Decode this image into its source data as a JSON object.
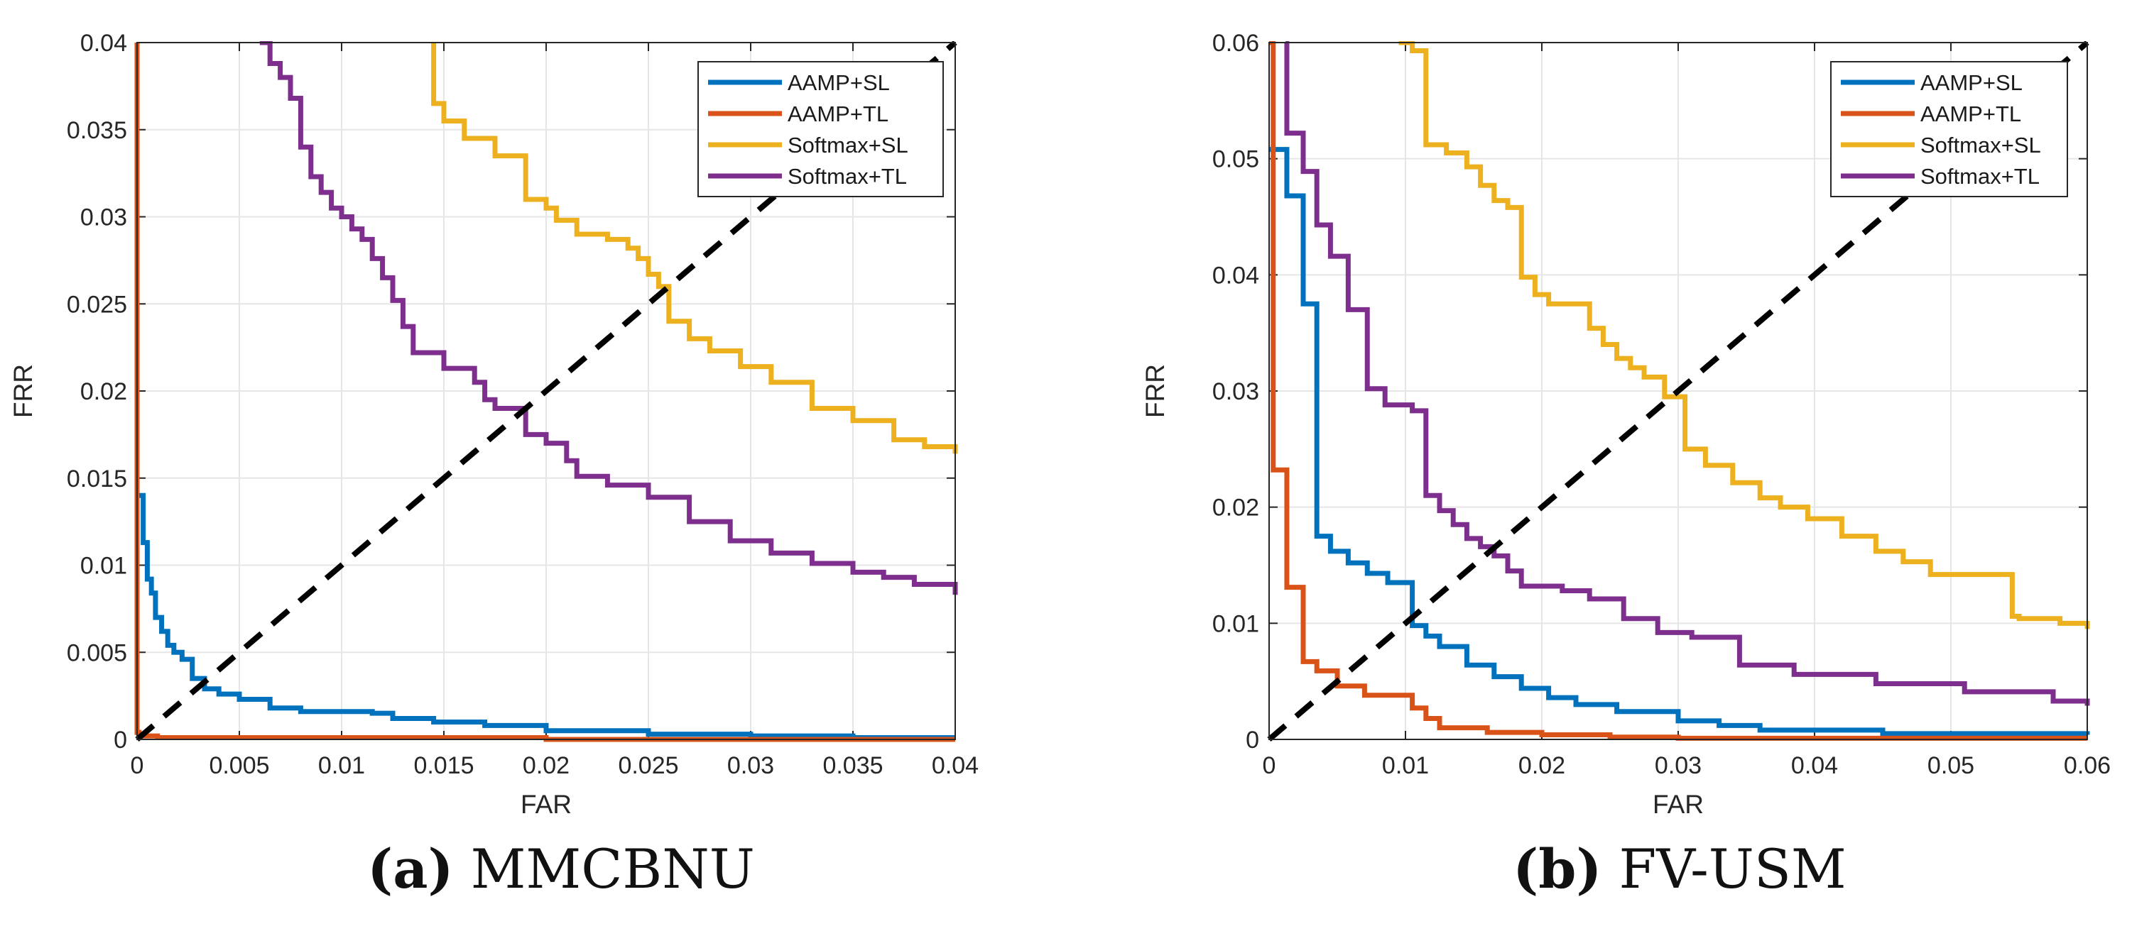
{
  "colors": {
    "AAMP+SL": "#0072BD",
    "AAMP+TL": "#D95319",
    "Softmax+SL": "#EDB120",
    "Softmax+TL": "#7E2F8E",
    "EER line": "#000000",
    "grid": "#e6e6e6"
  },
  "chart_data": [
    {
      "type": "line",
      "panel_label": "(a)",
      "title": "MMCBNU",
      "xlabel": "FAR",
      "ylabel": "FRR",
      "xlim": [
        0,
        0.04
      ],
      "ylim": [
        0,
        0.04
      ],
      "xticks": [
        0,
        0.005,
        0.01,
        0.015,
        0.02,
        0.025,
        0.03,
        0.035,
        0.04
      ],
      "yticks": [
        0,
        0.005,
        0.01,
        0.015,
        0.02,
        0.025,
        0.03,
        0.035,
        0.04
      ],
      "xtick_labels": [
        "0",
        "0.005",
        "0.01",
        "0.015",
        "0.02",
        "0.025",
        "0.03",
        "0.035",
        "0.04"
      ],
      "ytick_labels": [
        "0",
        "0.005",
        "0.01",
        "0.015",
        "0.02",
        "0.025",
        "0.03",
        "0.035",
        "0.04"
      ],
      "grid": true,
      "legend_position": "top-right",
      "series": [
        {
          "name": "AAMP+SL",
          "x": [
            0.0,
            0.0001,
            0.0003,
            0.0005,
            0.0007,
            0.0009,
            0.0012,
            0.0015,
            0.0018,
            0.0022,
            0.0027,
            0.0033,
            0.004,
            0.005,
            0.0065,
            0.008,
            0.01,
            0.0115,
            0.0125,
            0.0145,
            0.017,
            0.02,
            0.025,
            0.03,
            0.035,
            0.04
          ],
          "y": [
            0.014,
            0.014,
            0.0113,
            0.0092,
            0.0084,
            0.007,
            0.0062,
            0.0054,
            0.005,
            0.0046,
            0.0035,
            0.0029,
            0.0026,
            0.0023,
            0.0018,
            0.0016,
            0.0016,
            0.0015,
            0.0012,
            0.001,
            0.0008,
            0.0005,
            0.0003,
            0.0002,
            0.0001,
            0.0001
          ]
        },
        {
          "name": "AAMP+TL",
          "x": [
            0.0,
            0.0,
            0.0001,
            0.0003,
            0.001,
            0.01,
            0.02,
            0.03,
            0.04
          ],
          "y": [
            0.04,
            0.0004,
            0.0003,
            0.0002,
            0.0001,
            0.0001,
            0.0,
            0.0,
            0.0
          ]
        },
        {
          "name": "Softmax+SL",
          "x": [
            0.0145,
            0.0145,
            0.015,
            0.016,
            0.0175,
            0.019,
            0.02,
            0.0205,
            0.0215,
            0.023,
            0.024,
            0.0245,
            0.025,
            0.0255,
            0.026,
            0.027,
            0.028,
            0.0295,
            0.031,
            0.033,
            0.035,
            0.037,
            0.0385,
            0.04
          ],
          "y": [
            0.04,
            0.0365,
            0.0355,
            0.0345,
            0.0335,
            0.031,
            0.0305,
            0.0298,
            0.029,
            0.0287,
            0.0282,
            0.0276,
            0.0267,
            0.026,
            0.024,
            0.023,
            0.0223,
            0.0214,
            0.0205,
            0.019,
            0.0183,
            0.0172,
            0.0168,
            0.0164
          ]
        },
        {
          "name": "Softmax+TL",
          "x": [
            0.006,
            0.0065,
            0.007,
            0.0075,
            0.008,
            0.0085,
            0.009,
            0.0095,
            0.01,
            0.0105,
            0.011,
            0.0115,
            0.012,
            0.0125,
            0.013,
            0.0135,
            0.015,
            0.0165,
            0.017,
            0.0175,
            0.019,
            0.02,
            0.021,
            0.0215,
            0.023,
            0.025,
            0.027,
            0.029,
            0.031,
            0.033,
            0.035,
            0.0365,
            0.038,
            0.04
          ],
          "y": [
            0.04,
            0.0388,
            0.038,
            0.0368,
            0.034,
            0.0323,
            0.0314,
            0.0305,
            0.03,
            0.0293,
            0.0287,
            0.0276,
            0.0265,
            0.0252,
            0.0237,
            0.0222,
            0.0213,
            0.0205,
            0.0195,
            0.019,
            0.0175,
            0.017,
            0.016,
            0.0151,
            0.0146,
            0.0139,
            0.0125,
            0.0114,
            0.0107,
            0.0101,
            0.0096,
            0.0093,
            0.0089,
            0.0083
          ]
        },
        {
          "name": "EER line",
          "x": [
            0,
            0.04
          ],
          "y": [
            0,
            0.04
          ]
        }
      ]
    },
    {
      "type": "line",
      "panel_label": "(b)",
      "title": "FV-USM",
      "xlabel": "FAR",
      "ylabel": "FRR",
      "xlim": [
        0,
        0.06
      ],
      "ylim": [
        0,
        0.06
      ],
      "xticks": [
        0,
        0.01,
        0.02,
        0.03,
        0.04,
        0.05,
        0.06
      ],
      "yticks": [
        0,
        0.01,
        0.02,
        0.03,
        0.04,
        0.05,
        0.06
      ],
      "xtick_labels": [
        "0",
        "0.01",
        "0.02",
        "0.03",
        "0.04",
        "0.05",
        "0.06"
      ],
      "ytick_labels": [
        "0",
        "0.01",
        "0.02",
        "0.03",
        "0.04",
        "0.05",
        "0.06"
      ],
      "grid": true,
      "legend_position": "top-right",
      "series": [
        {
          "name": "AAMP+SL",
          "x": [
            0.0,
            0.0013,
            0.0025,
            0.0035,
            0.0045,
            0.0058,
            0.0072,
            0.0087,
            0.0105,
            0.0115,
            0.0125,
            0.0145,
            0.0165,
            0.0185,
            0.0205,
            0.0225,
            0.0255,
            0.03,
            0.033,
            0.036,
            0.045,
            0.06
          ],
          "y": [
            0.0508,
            0.0468,
            0.0375,
            0.0175,
            0.0162,
            0.0152,
            0.0143,
            0.0135,
            0.0098,
            0.0089,
            0.008,
            0.0064,
            0.0054,
            0.0044,
            0.0036,
            0.003,
            0.0024,
            0.0016,
            0.0012,
            0.0008,
            0.0005,
            0.0004
          ]
        },
        {
          "name": "AAMP+TL",
          "x": [
            0.0,
            0.0003,
            0.0013,
            0.0025,
            0.0035,
            0.005,
            0.007,
            0.0105,
            0.0115,
            0.0125,
            0.016,
            0.02,
            0.025,
            0.03,
            0.06
          ],
          "y": [
            0.06,
            0.0232,
            0.0131,
            0.0067,
            0.0059,
            0.0046,
            0.0038,
            0.0027,
            0.0018,
            0.001,
            0.0006,
            0.0004,
            0.0002,
            0.0001,
            0.0001
          ]
        },
        {
          "name": "Softmax+SL",
          "x": [
            0.0095,
            0.0105,
            0.0115,
            0.013,
            0.0145,
            0.0155,
            0.0165,
            0.0175,
            0.0185,
            0.0195,
            0.0205,
            0.0235,
            0.0245,
            0.0255,
            0.0265,
            0.0275,
            0.029,
            0.0305,
            0.032,
            0.034,
            0.036,
            0.0375,
            0.0395,
            0.042,
            0.0445,
            0.0465,
            0.0485,
            0.0545,
            0.055,
            0.058,
            0.06
          ],
          "y": [
            0.06,
            0.0593,
            0.0512,
            0.0505,
            0.0493,
            0.0477,
            0.0464,
            0.0458,
            0.0398,
            0.0383,
            0.0375,
            0.0354,
            0.034,
            0.0328,
            0.032,
            0.0312,
            0.0295,
            0.025,
            0.0236,
            0.0221,
            0.0208,
            0.02,
            0.019,
            0.0175,
            0.0162,
            0.0153,
            0.0142,
            0.0106,
            0.0104,
            0.01,
            0.0095
          ]
        },
        {
          "name": "Softmax+TL",
          "x": [
            0.0012,
            0.0013,
            0.0025,
            0.0035,
            0.0045,
            0.0058,
            0.0072,
            0.0085,
            0.0105,
            0.0115,
            0.0125,
            0.0135,
            0.0145,
            0.0155,
            0.0165,
            0.0175,
            0.0185,
            0.0215,
            0.0235,
            0.026,
            0.0285,
            0.031,
            0.0345,
            0.0385,
            0.0445,
            0.051,
            0.0575,
            0.06
          ],
          "y": [
            0.06,
            0.0522,
            0.0489,
            0.0443,
            0.0416,
            0.037,
            0.0302,
            0.0288,
            0.0283,
            0.021,
            0.0197,
            0.0185,
            0.0173,
            0.0166,
            0.0158,
            0.0145,
            0.0132,
            0.0128,
            0.0121,
            0.0104,
            0.0092,
            0.0088,
            0.0064,
            0.0056,
            0.0048,
            0.0041,
            0.0033,
            0.0029
          ]
        },
        {
          "name": "EER line",
          "x": [
            0,
            0.06
          ],
          "y": [
            0,
            0.06
          ]
        }
      ]
    }
  ]
}
